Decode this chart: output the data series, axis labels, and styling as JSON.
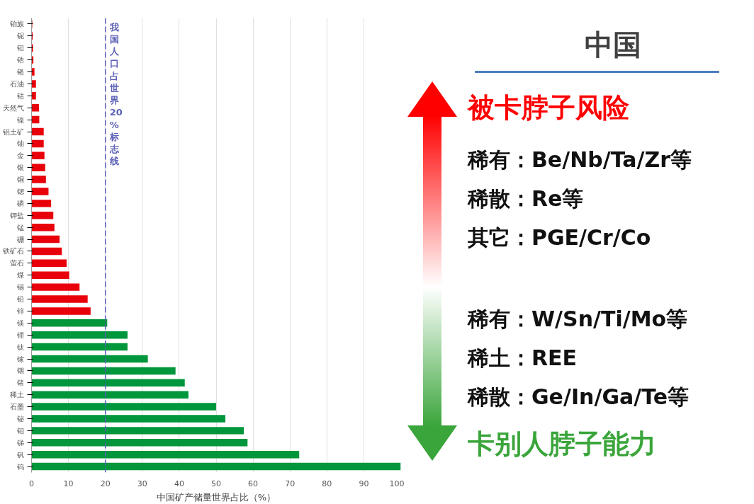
{
  "chart_data": [
    {
      "type": "bar",
      "orientation": "horizontal",
      "xlabel": "中国矿产储量世界占比（%）",
      "categories": [
        "铂族",
        "铌",
        "钽",
        "锆",
        "铬",
        "石油",
        "钴",
        "天然气",
        "镍",
        "铝土矿",
        "铀",
        "金",
        "银",
        "铜",
        "锶",
        "磷",
        "钾盐",
        "锰",
        "硼",
        "铁矿石",
        "萤石",
        "煤",
        "锡",
        "铅",
        "锌",
        "镁",
        "锂",
        "钛",
        "镓",
        "铟",
        "锗",
        "稀土",
        "石墨",
        "铋",
        "钼",
        "锑",
        "钒",
        "钨"
      ],
      "values": [
        0.2,
        0.3,
        0.4,
        0.5,
        0.8,
        1.2,
        1.2,
        2,
        2.1,
        3.3,
        3.3,
        3.5,
        3.7,
        3.9,
        4.6,
        5.3,
        5.9,
        6.2,
        7.6,
        8.2,
        9.5,
        10.2,
        13,
        15.2,
        16,
        20.5,
        26,
        26,
        31.5,
        39,
        41.5,
        42.5,
        50,
        52.5,
        57.5,
        58.5,
        72.5,
        100
      ],
      "colors": [
        "#e8000b",
        "#e8000b",
        "#e8000b",
        "#e8000b",
        "#e8000b",
        "#e8000b",
        "#e8000b",
        "#e8000b",
        "#e8000b",
        "#e8000b",
        "#e8000b",
        "#e8000b",
        "#e8000b",
        "#e8000b",
        "#e8000b",
        "#e8000b",
        "#e8000b",
        "#e8000b",
        "#e8000b",
        "#e8000b",
        "#e8000b",
        "#e8000b",
        "#e8000b",
        "#e8000b",
        "#e8000b",
        "#00963c",
        "#00963c",
        "#00963c",
        "#00963c",
        "#00963c",
        "#00963c",
        "#00963c",
        "#00963c",
        "#00963c",
        "#00963c",
        "#00963c",
        "#00963c",
        "#00963c"
      ],
      "xlim": [
        0,
        100
      ],
      "xticks": [
        0,
        10,
        20,
        30,
        40,
        50,
        60,
        70,
        80,
        90,
        100
      ],
      "grid": "x",
      "ref_lines": [
        {
          "axis": "x",
          "value": 20,
          "label": "我国人口占世界20%标志线",
          "color": "#5b5fb5",
          "line_style": "dashed"
        }
      ]
    },
    {
      "type": "other",
      "title": "中国",
      "annotations": [
        "被卡脖子风险",
        "稀有：Be/Nb/Ta/Zr等",
        "稀散：Re等",
        "其它：PGE/Cr/Co",
        "稀有：W/Sn/Ti/Mo等",
        "稀土：REE",
        "稀散：Ge/In/Ga/Te等",
        "卡别人脖子能力"
      ],
      "colors": [
        "#ff0000",
        "#111111",
        "#111111",
        "#111111",
        "#111111",
        "#111111",
        "#111111",
        "#3aa53a"
      ]
    }
  ]
}
